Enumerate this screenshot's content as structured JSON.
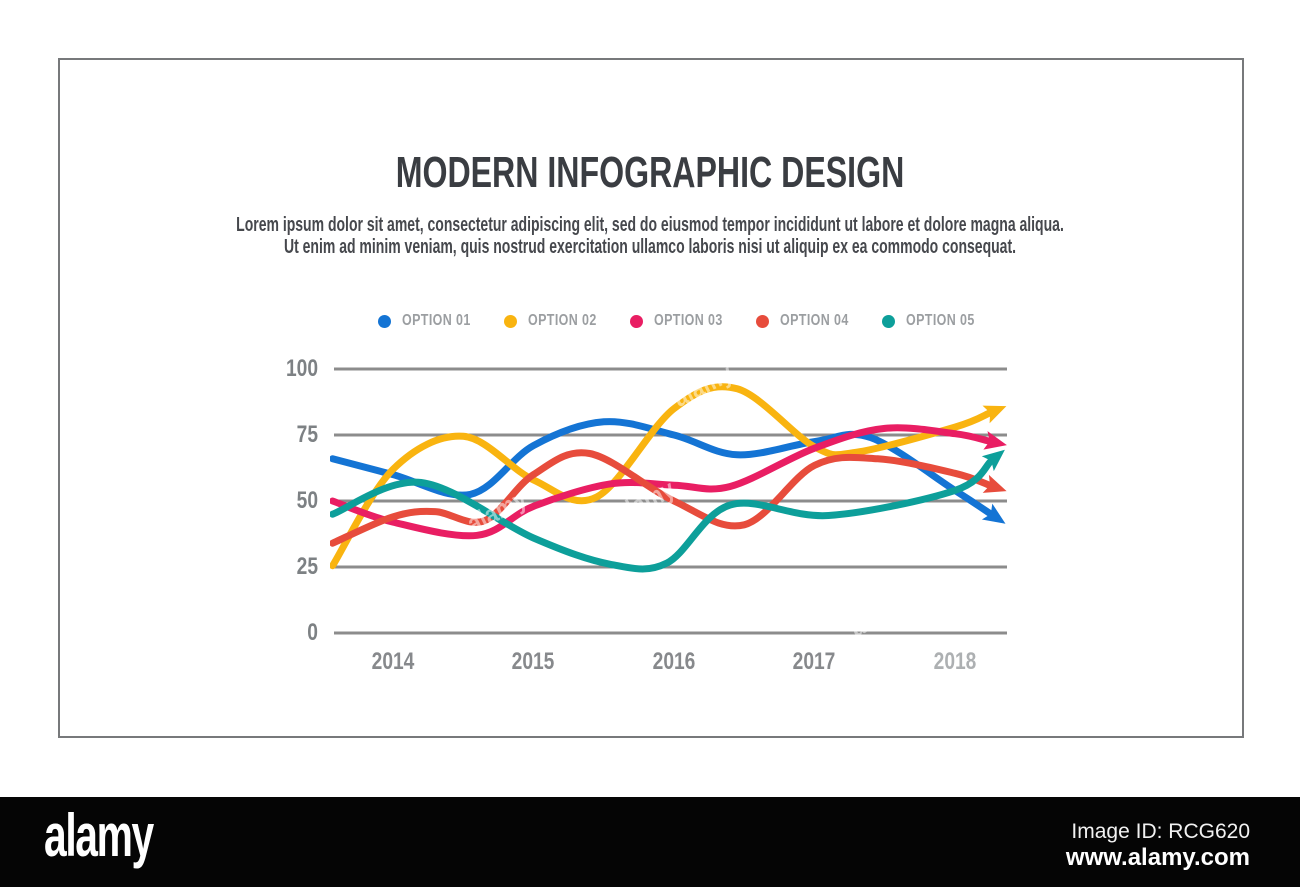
{
  "header": {
    "title": "MODERN INFOGRAPHIC DESIGN",
    "subtitle_line1": "Lorem ipsum dolor sit amet, consectetur adipiscing elit, sed do eiusmod tempor incididunt ut labore et dolore magna aliqua.",
    "subtitle_line2": "Ut enim ad minim veniam, quis nostrud exercitation ullamco laboris nisi ut aliquip ex ea commodo consequat."
  },
  "chart_data": {
    "type": "line",
    "title": "",
    "x_unit": "year",
    "x_labels": [
      "2014",
      "2015",
      "2016",
      "2017",
      "2018"
    ],
    "x_range": [
      2013.57,
      2018.3
    ],
    "y_axis_labels": [
      "100",
      "75",
      "50",
      "25",
      "0"
    ],
    "y_ticks": [
      100,
      75,
      50,
      25,
      0
    ],
    "ylim": [
      0,
      100
    ],
    "grid": "horizontal-only",
    "grid_color": "#8c8c8c",
    "legend_position": "top",
    "line_style": "smooth-curves-with-arrow-ends",
    "series": [
      {
        "name": "OPTION 01",
        "color": "#1474d4",
        "points": [
          [
            2013.57,
            66
          ],
          [
            2014,
            60
          ],
          [
            2014.55,
            52.5
          ],
          [
            2015,
            71
          ],
          [
            2015.5,
            80
          ],
          [
            2016,
            75
          ],
          [
            2016.45,
            67.5
          ],
          [
            2017,
            72.5
          ],
          [
            2017.4,
            74
          ],
          [
            2018,
            54
          ],
          [
            2018.3,
            43.5
          ]
        ]
      },
      {
        "name": "OPTION 02",
        "color": "#f9b410",
        "points": [
          [
            2013.57,
            25.5
          ],
          [
            2014,
            62
          ],
          [
            2014.5,
            74.5
          ],
          [
            2015,
            58
          ],
          [
            2015.45,
            51.5
          ],
          [
            2016,
            85
          ],
          [
            2016.45,
            92.5
          ],
          [
            2017,
            70.5
          ],
          [
            2017.3,
            68.5
          ],
          [
            2018,
            78
          ],
          [
            2018.3,
            84.5
          ]
        ]
      },
      {
        "name": "OPTION 03",
        "color": "#e91e63",
        "points": [
          [
            2013.57,
            50
          ],
          [
            2014,
            42
          ],
          [
            2014.6,
            37
          ],
          [
            2015,
            48
          ],
          [
            2015.55,
            56.5
          ],
          [
            2016,
            56
          ],
          [
            2016.4,
            55.5
          ],
          [
            2017,
            70
          ],
          [
            2017.5,
            77.5
          ],
          [
            2018,
            75.5
          ],
          [
            2018.3,
            72
          ]
        ]
      },
      {
        "name": "OPTION 04",
        "color": "#e74c3c",
        "points": [
          [
            2013.57,
            34
          ],
          [
            2014,
            44
          ],
          [
            2014.3,
            46
          ],
          [
            2014.65,
            42.5
          ],
          [
            2015,
            60
          ],
          [
            2015.4,
            68
          ],
          [
            2016,
            50
          ],
          [
            2016.5,
            41
          ],
          [
            2017,
            63.5
          ],
          [
            2017.45,
            66
          ],
          [
            2018,
            60.5
          ],
          [
            2018.3,
            55
          ]
        ]
      },
      {
        "name": "OPTION 05",
        "color": "#0d9f9a",
        "points": [
          [
            2013.57,
            45
          ],
          [
            2014.2,
            57
          ],
          [
            2015,
            36
          ],
          [
            2015.55,
            26
          ],
          [
            2015.95,
            26.5
          ],
          [
            2016.4,
            48.5
          ],
          [
            2017.1,
            44.5
          ],
          [
            2018,
            54
          ],
          [
            2018.3,
            67
          ]
        ]
      }
    ]
  },
  "watermarks": {
    "text": "alamy"
  },
  "footer": {
    "logo": "alamy",
    "image_id": "Image ID: RCG620",
    "url": "www.alamy.com"
  }
}
